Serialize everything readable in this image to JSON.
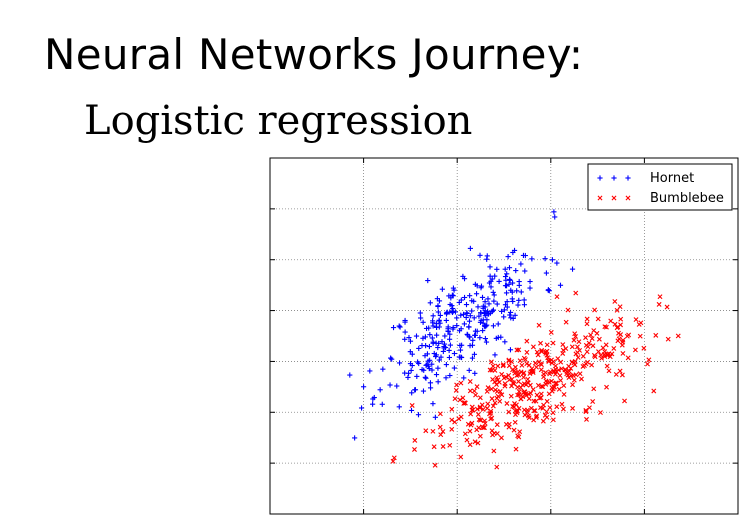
{
  "slide": {
    "title": "Neural Networks Journey:",
    "subtitle": "Logistic regression"
  },
  "chart_data": {
    "type": "scatter",
    "title": "",
    "xlabel": "",
    "ylabel": "",
    "xlim": [
      0,
      10
    ],
    "ylim": [
      0,
      7
    ],
    "grid": true,
    "legend_position": "top-right",
    "series": [
      {
        "name": "Hornet",
        "marker": "+",
        "color": "#0000ff",
        "center": [
          4.1,
          3.75
        ],
        "spread": [
          0.85,
          0.72
        ],
        "correlation": 0.72,
        "count": 320,
        "seed": 11
      },
      {
        "name": "Bumblebee",
        "marker": "x",
        "color": "#ff0000",
        "center": [
          5.6,
          2.55
        ],
        "spread": [
          1.1,
          0.62
        ],
        "correlation": 0.7,
        "count": 420,
        "seed": 29
      }
    ]
  }
}
